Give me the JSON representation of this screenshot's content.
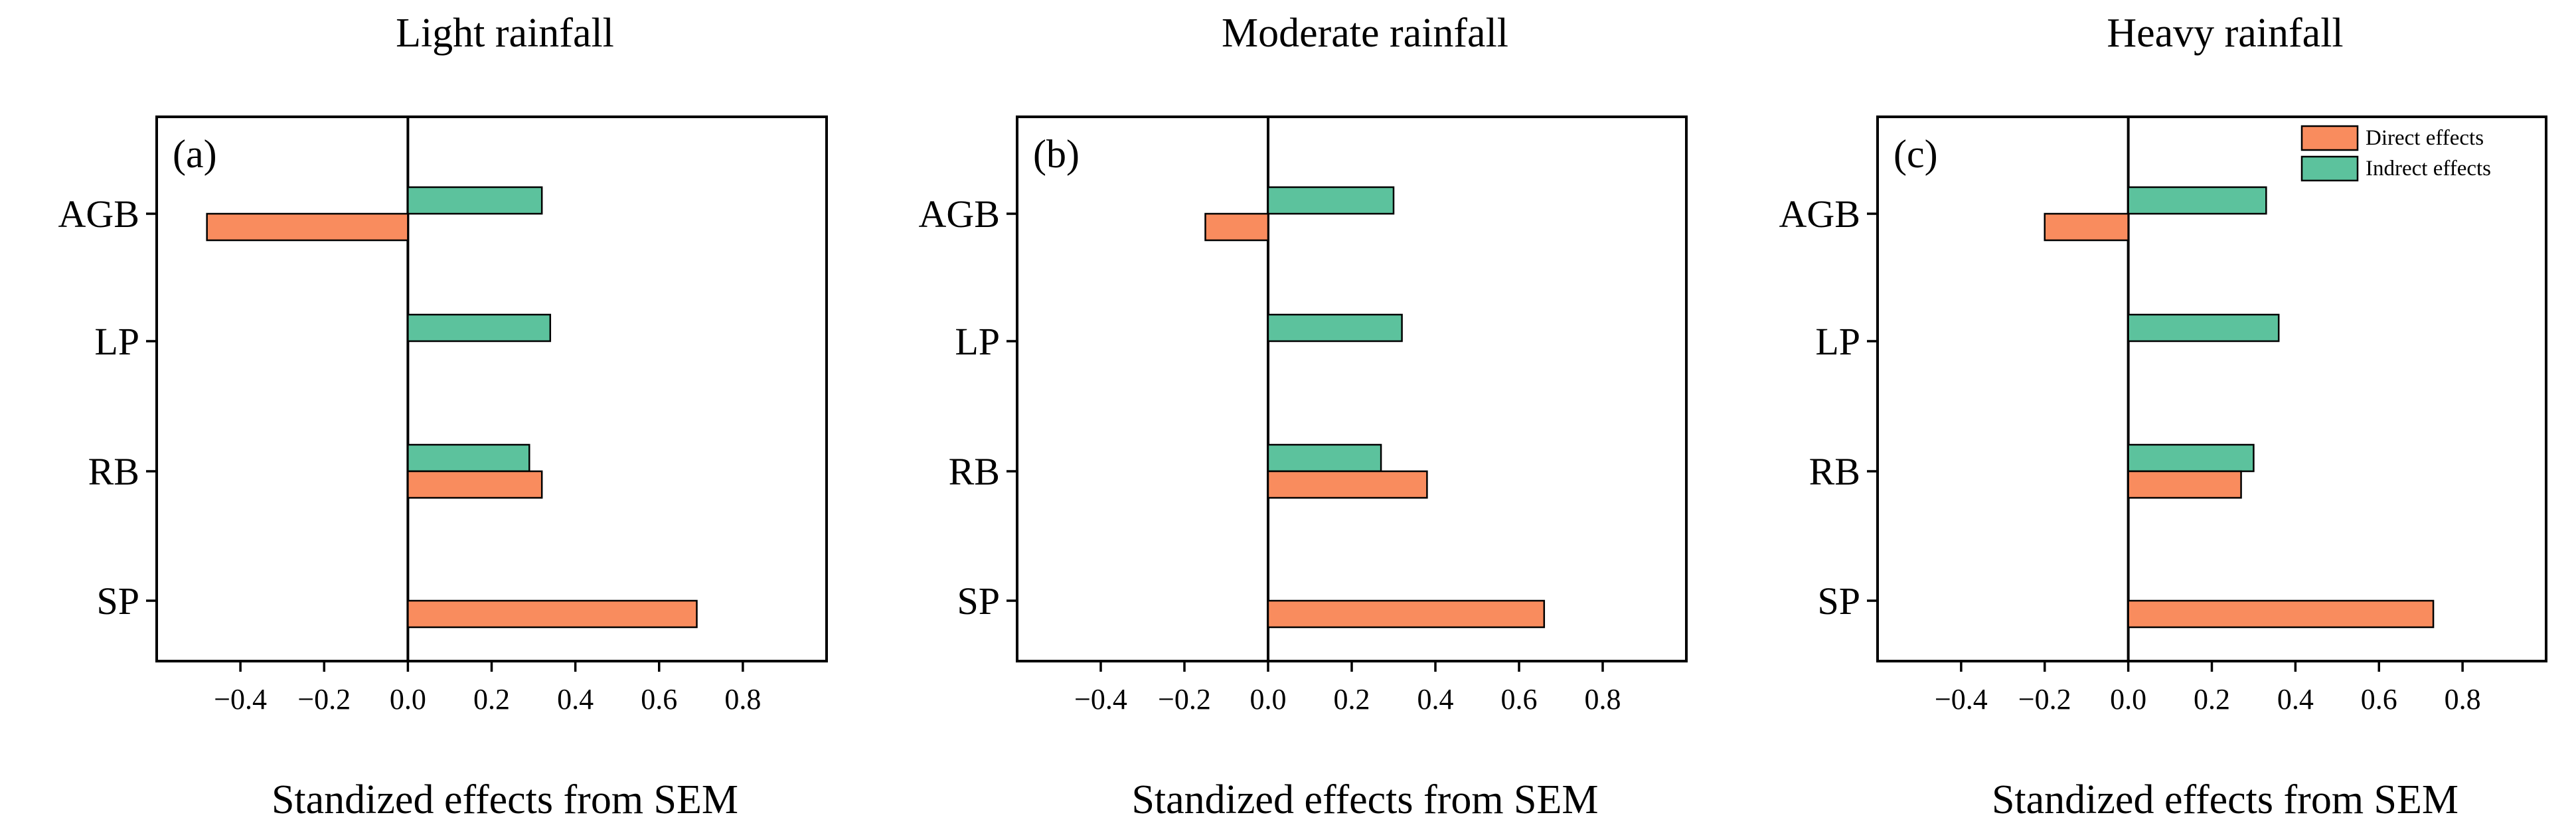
{
  "colors": {
    "direct": "#f98c5e",
    "indirect": "#5cc29d",
    "axis": "#000000"
  },
  "chart_data": [
    {
      "type": "bar",
      "orientation": "horizontal",
      "title": "Light rainfall",
      "panel_label": "(a)",
      "xlabel": "Standized  effects  from SEM",
      "ylabel": "",
      "categories": [
        "AGB",
        "LP",
        "RB",
        "SP"
      ],
      "xlim": [
        -0.6,
        1.0
      ],
      "xticks": [
        -0.4,
        -0.2,
        0.0,
        0.2,
        0.4,
        0.6,
        0.8
      ],
      "xtick_labels": [
        "−0.4",
        "−0.2",
        "0.0",
        "0.2",
        "0.4",
        "0.6",
        "0.8"
      ],
      "series": [
        {
          "name": "Indrect effects",
          "values": [
            0.32,
            0.34,
            0.29,
            null
          ]
        },
        {
          "name": "Direct effects",
          "values": [
            -0.48,
            null,
            0.32,
            0.69
          ]
        }
      ],
      "legend": null
    },
    {
      "type": "bar",
      "orientation": "horizontal",
      "title": "Moderate rainfall",
      "panel_label": "(b)",
      "xlabel": "Standized  effects  from SEM",
      "ylabel": "",
      "categories": [
        "AGB",
        "LP",
        "RB",
        "SP"
      ],
      "xlim": [
        -0.6,
        1.0
      ],
      "xticks": [
        -0.4,
        -0.2,
        0.0,
        0.2,
        0.4,
        0.6,
        0.8
      ],
      "xtick_labels": [
        "−0.4",
        "−0.2",
        "0.0",
        "0.2",
        "0.4",
        "0.6",
        "0.8"
      ],
      "series": [
        {
          "name": "Indrect effects",
          "values": [
            0.3,
            0.32,
            0.27,
            null
          ]
        },
        {
          "name": "Direct effects",
          "values": [
            -0.15,
            null,
            0.38,
            0.66
          ]
        }
      ],
      "legend": null
    },
    {
      "type": "bar",
      "orientation": "horizontal",
      "title": "Heavy rainfall",
      "panel_label": "(c)",
      "xlabel": "Standized  effects  from SEM",
      "ylabel": "",
      "categories": [
        "AGB",
        "LP",
        "RB",
        "SP"
      ],
      "xlim": [
        -0.6,
        1.0
      ],
      "xticks": [
        -0.4,
        -0.2,
        0.0,
        0.2,
        0.4,
        0.6,
        0.8
      ],
      "xtick_labels": [
        "−0.4",
        "−0.2",
        "0.0",
        "0.2",
        "0.4",
        "0.6",
        "0.8"
      ],
      "series": [
        {
          "name": "Indrect effects",
          "values": [
            0.33,
            0.36,
            0.3,
            null
          ]
        },
        {
          "name": "Direct effects",
          "values": [
            -0.2,
            null,
            0.27,
            0.73
          ]
        }
      ],
      "legend": {
        "position": "top-right",
        "entries": [
          "Direct effects",
          "Indrect effects"
        ]
      }
    }
  ]
}
